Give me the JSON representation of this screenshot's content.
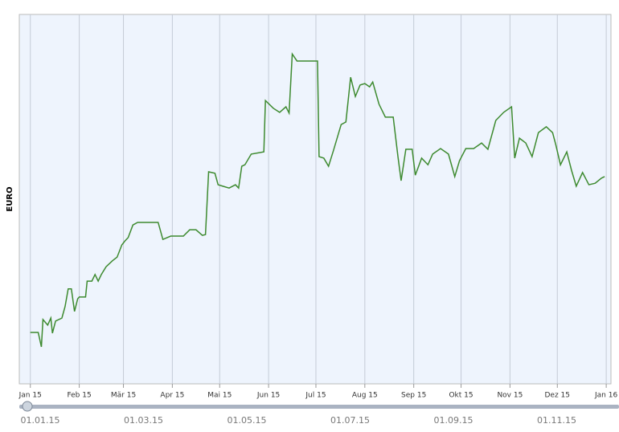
{
  "chart_data": {
    "type": "line",
    "y_label": "EURO",
    "xlim": [
      -7,
      368
    ],
    "ylim": [
      0,
      100
    ],
    "grid": true,
    "xticks": [
      {
        "value": 0,
        "label": "Jan 15"
      },
      {
        "value": 31,
        "label": "Feb 15"
      },
      {
        "value": 59,
        "label": "Mär 15"
      },
      {
        "value": 90,
        "label": "Apr 15"
      },
      {
        "value": 120,
        "label": "Mai 15"
      },
      {
        "value": 151,
        "label": "Jun 15"
      },
      {
        "value": 181,
        "label": "Jul 15"
      },
      {
        "value": 212,
        "label": "Aug 15"
      },
      {
        "value": 243,
        "label": "Sep 15"
      },
      {
        "value": 273,
        "label": "Okt 15"
      },
      {
        "value": 304,
        "label": "Nov 15"
      },
      {
        "value": 334,
        "label": "Dez 15"
      },
      {
        "value": 365,
        "label": "Jan 16"
      }
    ],
    "x": [
      0,
      5,
      7,
      8,
      11,
      13,
      14,
      16,
      20,
      22,
      24,
      26,
      28,
      30,
      31,
      35,
      36,
      39,
      41,
      43,
      45,
      48,
      52,
      55,
      58,
      60,
      62,
      65,
      68,
      81,
      84,
      89,
      97,
      101,
      105,
      109,
      111,
      113,
      117,
      119,
      122,
      126,
      130,
      132,
      134,
      136,
      140,
      148,
      149,
      154,
      158,
      162,
      164,
      166,
      169,
      182,
      183,
      186,
      189,
      192,
      197,
      200,
      203,
      206,
      209,
      212,
      215,
      217,
      221,
      225,
      230,
      233,
      235,
      238,
      242,
      244,
      248,
      252,
      255,
      260,
      265,
      269,
      272,
      276,
      281,
      286,
      290,
      295,
      300,
      305,
      307,
      310,
      314,
      318,
      322,
      327,
      331,
      333,
      336,
      340,
      343,
      346,
      350,
      354,
      358,
      362,
      364
    ],
    "series": [
      {
        "color": "#3d8a2f",
        "values": [
          13.9,
          13.9,
          10,
          17.4,
          15.9,
          17.8,
          13.7,
          17,
          17.8,
          20.9,
          25.7,
          25.7,
          19.6,
          23,
          23.5,
          23.5,
          27.8,
          27.8,
          29.6,
          27.8,
          29.6,
          31.7,
          33.3,
          34.3,
          37.6,
          38.7,
          39.6,
          43,
          43.7,
          43.7,
          39.1,
          40,
          40,
          41.7,
          41.7,
          40.2,
          40.4,
          57.4,
          57,
          53.9,
          53.5,
          53,
          53.9,
          53,
          58.9,
          59.3,
          62.2,
          62.8,
          76.7,
          74.6,
          73.5,
          75,
          73.3,
          89.3,
          87.4,
          87.4,
          61.5,
          61.1,
          58.9,
          63,
          70.2,
          70.9,
          83,
          77.8,
          80.9,
          81.3,
          80.4,
          81.7,
          75.7,
          72.2,
          72.2,
          61.5,
          55,
          63.5,
          63.5,
          56.5,
          61.1,
          59.3,
          62.2,
          63.7,
          62.2,
          56.1,
          60.4,
          63.7,
          63.7,
          65.2,
          63.5,
          71.3,
          73.5,
          75,
          61.1,
          66.5,
          65.2,
          61.5,
          68,
          69.6,
          68,
          64.8,
          59.3,
          62.8,
          57.8,
          53.5,
          57.2,
          53.9,
          54.3,
          55.7,
          56.1
        ]
      }
    ],
    "navigator_labels": [
      "01.01.15",
      "01.03.15",
      "01.05.15",
      "01.07.15",
      "01.09.15",
      "01.11.15"
    ]
  }
}
